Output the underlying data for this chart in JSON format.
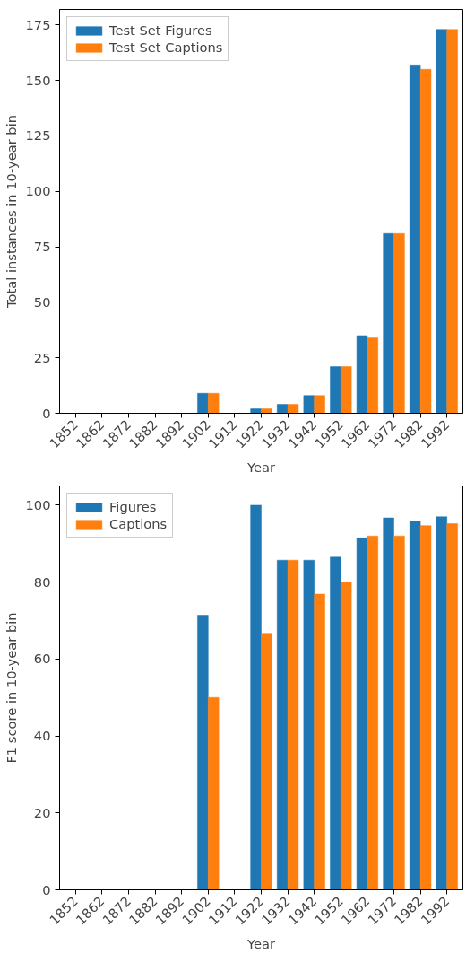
{
  "chart_data": [
    {
      "type": "bar",
      "xlabel": "Year",
      "ylabel": "Total instances in 10-year bin",
      "categories": [
        "1852",
        "1862",
        "1872",
        "1882",
        "1892",
        "1902",
        "1912",
        "1922",
        "1932",
        "1942",
        "1952",
        "1962",
        "1972",
        "1982",
        "1992"
      ],
      "series": [
        {
          "name": "Test Set Figures",
          "color": "#1f77b4",
          "values": [
            0,
            0,
            0,
            0,
            0,
            9,
            0,
            2,
            4,
            8,
            21,
            35,
            81,
            157,
            173
          ]
        },
        {
          "name": "Test Set Captions",
          "color": "#ff7f0e",
          "values": [
            0,
            0,
            0,
            0,
            0,
            9,
            0,
            2,
            4,
            8,
            21,
            34,
            81,
            155,
            173
          ]
        }
      ],
      "ylim": [
        0,
        182
      ],
      "yticks": [
        0,
        25,
        50,
        75,
        100,
        125,
        150,
        175
      ],
      "legend": "top left",
      "grid": false
    },
    {
      "type": "bar",
      "xlabel": "Year",
      "ylabel": "F1 score in 10-year bin",
      "categories": [
        "1852",
        "1862",
        "1872",
        "1882",
        "1892",
        "1902",
        "1912",
        "1922",
        "1932",
        "1942",
        "1952",
        "1962",
        "1972",
        "1982",
        "1992"
      ],
      "series": [
        {
          "name": "Figures",
          "color": "#1f77b4",
          "values": [
            0,
            0,
            0,
            0,
            0,
            71.4,
            0,
            100,
            85.7,
            85.7,
            86.5,
            91.5,
            96.7,
            95.9,
            97
          ]
        },
        {
          "name": "Captions",
          "color": "#ff7f0e",
          "values": [
            0,
            0,
            0,
            0,
            0,
            50,
            0,
            66.7,
            85.7,
            76.9,
            80,
            92,
            92,
            94.7,
            95.2
          ]
        }
      ],
      "ylim": [
        0,
        105
      ],
      "yticks": [
        0,
        20,
        40,
        60,
        80,
        100
      ],
      "legend": "top left",
      "grid": false
    }
  ]
}
